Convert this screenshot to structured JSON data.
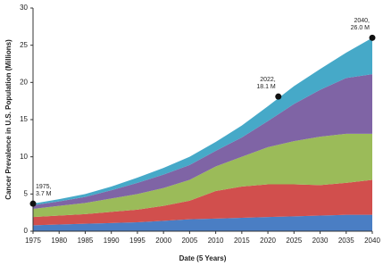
{
  "chart_data": {
    "type": "stacked_area",
    "y_label": "Cancer Prevalence in U.S. Population (Millions)",
    "x_label": "Date (5 Years)",
    "x": [
      1975,
      1980,
      1985,
      1990,
      1995,
      2000,
      2005,
      2010,
      2015,
      2020,
      2025,
      2030,
      2035,
      2040
    ],
    "series": [
      {
        "color": "#4a7ec4",
        "values": [
          0.8,
          0.9,
          1.0,
          1.1,
          1.2,
          1.4,
          1.6,
          1.7,
          1.8,
          1.9,
          2.0,
          2.1,
          2.2,
          2.2
        ]
      },
      {
        "color": "#d14f4d",
        "values": [
          1.1,
          1.2,
          1.3,
          1.5,
          1.7,
          2.0,
          2.5,
          3.7,
          4.2,
          4.4,
          4.3,
          4.1,
          4.3,
          4.7
        ]
      },
      {
        "color": "#9bbb59",
        "values": [
          1.1,
          1.3,
          1.5,
          1.8,
          2.1,
          2.4,
          2.8,
          3.3,
          4.0,
          5.0,
          5.8,
          6.5,
          6.6,
          6.2
        ]
      },
      {
        "color": "#7f64a5",
        "values": [
          0.5,
          0.6,
          0.8,
          1.1,
          1.5,
          1.8,
          2.0,
          2.1,
          2.6,
          3.5,
          5.0,
          6.3,
          7.5,
          8.0
        ]
      },
      {
        "color": "#46a9c8",
        "values": [
          0.2,
          0.3,
          0.4,
          0.5,
          0.7,
          0.9,
          1.1,
          1.2,
          1.6,
          2.0,
          2.4,
          2.8,
          3.4,
          4.9
        ]
      }
    ],
    "annotations": [
      {
        "x": 1975,
        "y": 3.7,
        "label": [
          "1975,",
          "3.7 M"
        ]
      },
      {
        "x": 2022,
        "y": 18.1,
        "label": [
          "2022,",
          "18.1 M"
        ]
      },
      {
        "x": 2040,
        "y": 26.0,
        "label": [
          "2040,",
          "26.0 M"
        ]
      }
    ],
    "xlim": [
      1975,
      2040
    ],
    "xticks": [
      1975,
      1980,
      1985,
      1990,
      1995,
      2000,
      2005,
      2010,
      2015,
      2020,
      2025,
      2030,
      2035,
      2040
    ],
    "ylim": [
      0,
      30
    ],
    "yticks": [
      0,
      5,
      10,
      15,
      20,
      25,
      30
    ],
    "grid": false
  }
}
